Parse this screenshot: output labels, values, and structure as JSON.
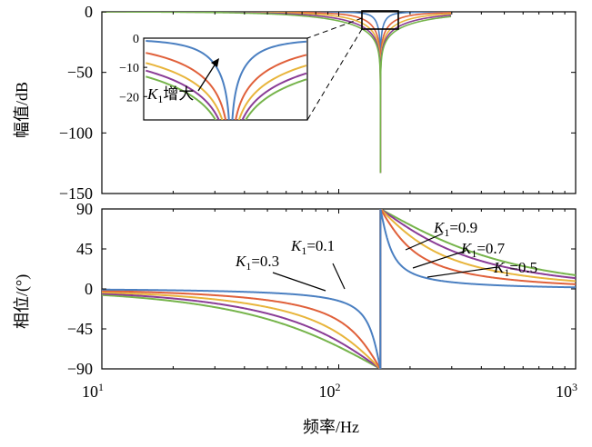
{
  "chart_data": {
    "type": "line",
    "x_scale": "log",
    "xlabel": "频率/Hz",
    "x_ticks": [
      {
        "value": 10,
        "base": "10",
        "exp": "1"
      },
      {
        "value": 100,
        "base": "10",
        "exp": "2"
      },
      {
        "value": 1000,
        "base": "10",
        "exp": "3"
      }
    ],
    "notch_frequency": 150,
    "series_colors": [
      "#4a7fc1",
      "#e0603a",
      "#e8b53c",
      "#8a3c96",
      "#76b44b"
    ],
    "K1_values": [
      0.1,
      0.3,
      0.5,
      0.7,
      0.9
    ],
    "magnitude": {
      "ylabel": "幅值/dB",
      "ylim": [
        -150,
        0
      ],
      "y_ticks": [
        "0",
        "−50",
        "−100",
        "−150"
      ],
      "min_value": -133,
      "inset": {
        "ylim": [
          -28,
          0
        ],
        "y_ticks": [
          "0",
          "−10",
          "−20"
        ],
        "arrow_label": {
          "K": "K",
          "sub": "1",
          "text": "增大"
        }
      }
    },
    "phase": {
      "ylabel": "相位/(°)",
      "ylim": [
        -90,
        90
      ],
      "y_ticks": [
        "90",
        "45",
        "0",
        "−45",
        "−90"
      ],
      "annotations": [
        {
          "K": "K",
          "sub": "1",
          "eq": "=0.1"
        },
        {
          "K": "K",
          "sub": "1",
          "eq": "=0.3"
        },
        {
          "K": "K",
          "sub": "1",
          "eq": "=0.9"
        },
        {
          "K": "K",
          "sub": "1",
          "eq": "=0.7"
        },
        {
          "K": "K",
          "sub": "1",
          "eq": "=0.5"
        }
      ]
    }
  }
}
